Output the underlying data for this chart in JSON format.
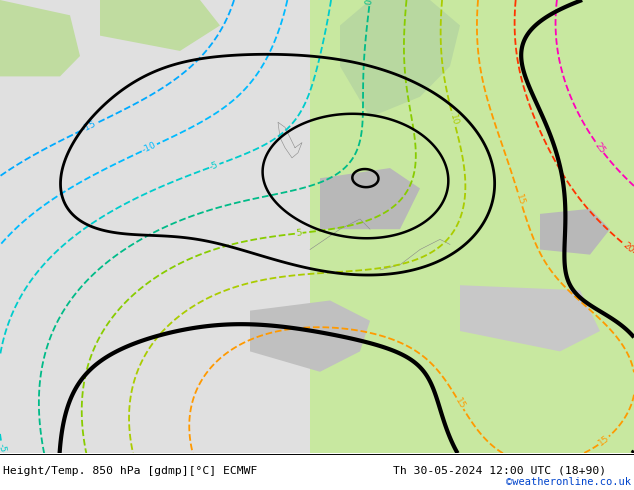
{
  "title_left": "Height/Temp. 850 hPa [gdmp][°C] ECMWF",
  "title_right": "Th 30-05-2024 12:00 UTC (18+90)",
  "credit": "©weatheronline.co.uk",
  "footer_color": "#0055cc",
  "temp_colors": {
    "-15": "#00aaff",
    "-10": "#00bbff",
    "-5": "#00cccc",
    "0": "#00bb88",
    "5": "#88cc00",
    "10": "#aacc00",
    "15": "#ff9900",
    "20": "#ff4400",
    "25": "#ff00aa",
    "30": "#cc00cc"
  },
  "bg_left": "#e8e8e8",
  "bg_right": "#c8e8a0",
  "bg_land_light": "#d0e8b0",
  "bg_ocean": "#dcdcdc",
  "bg_mountain": "#b0b0b0"
}
